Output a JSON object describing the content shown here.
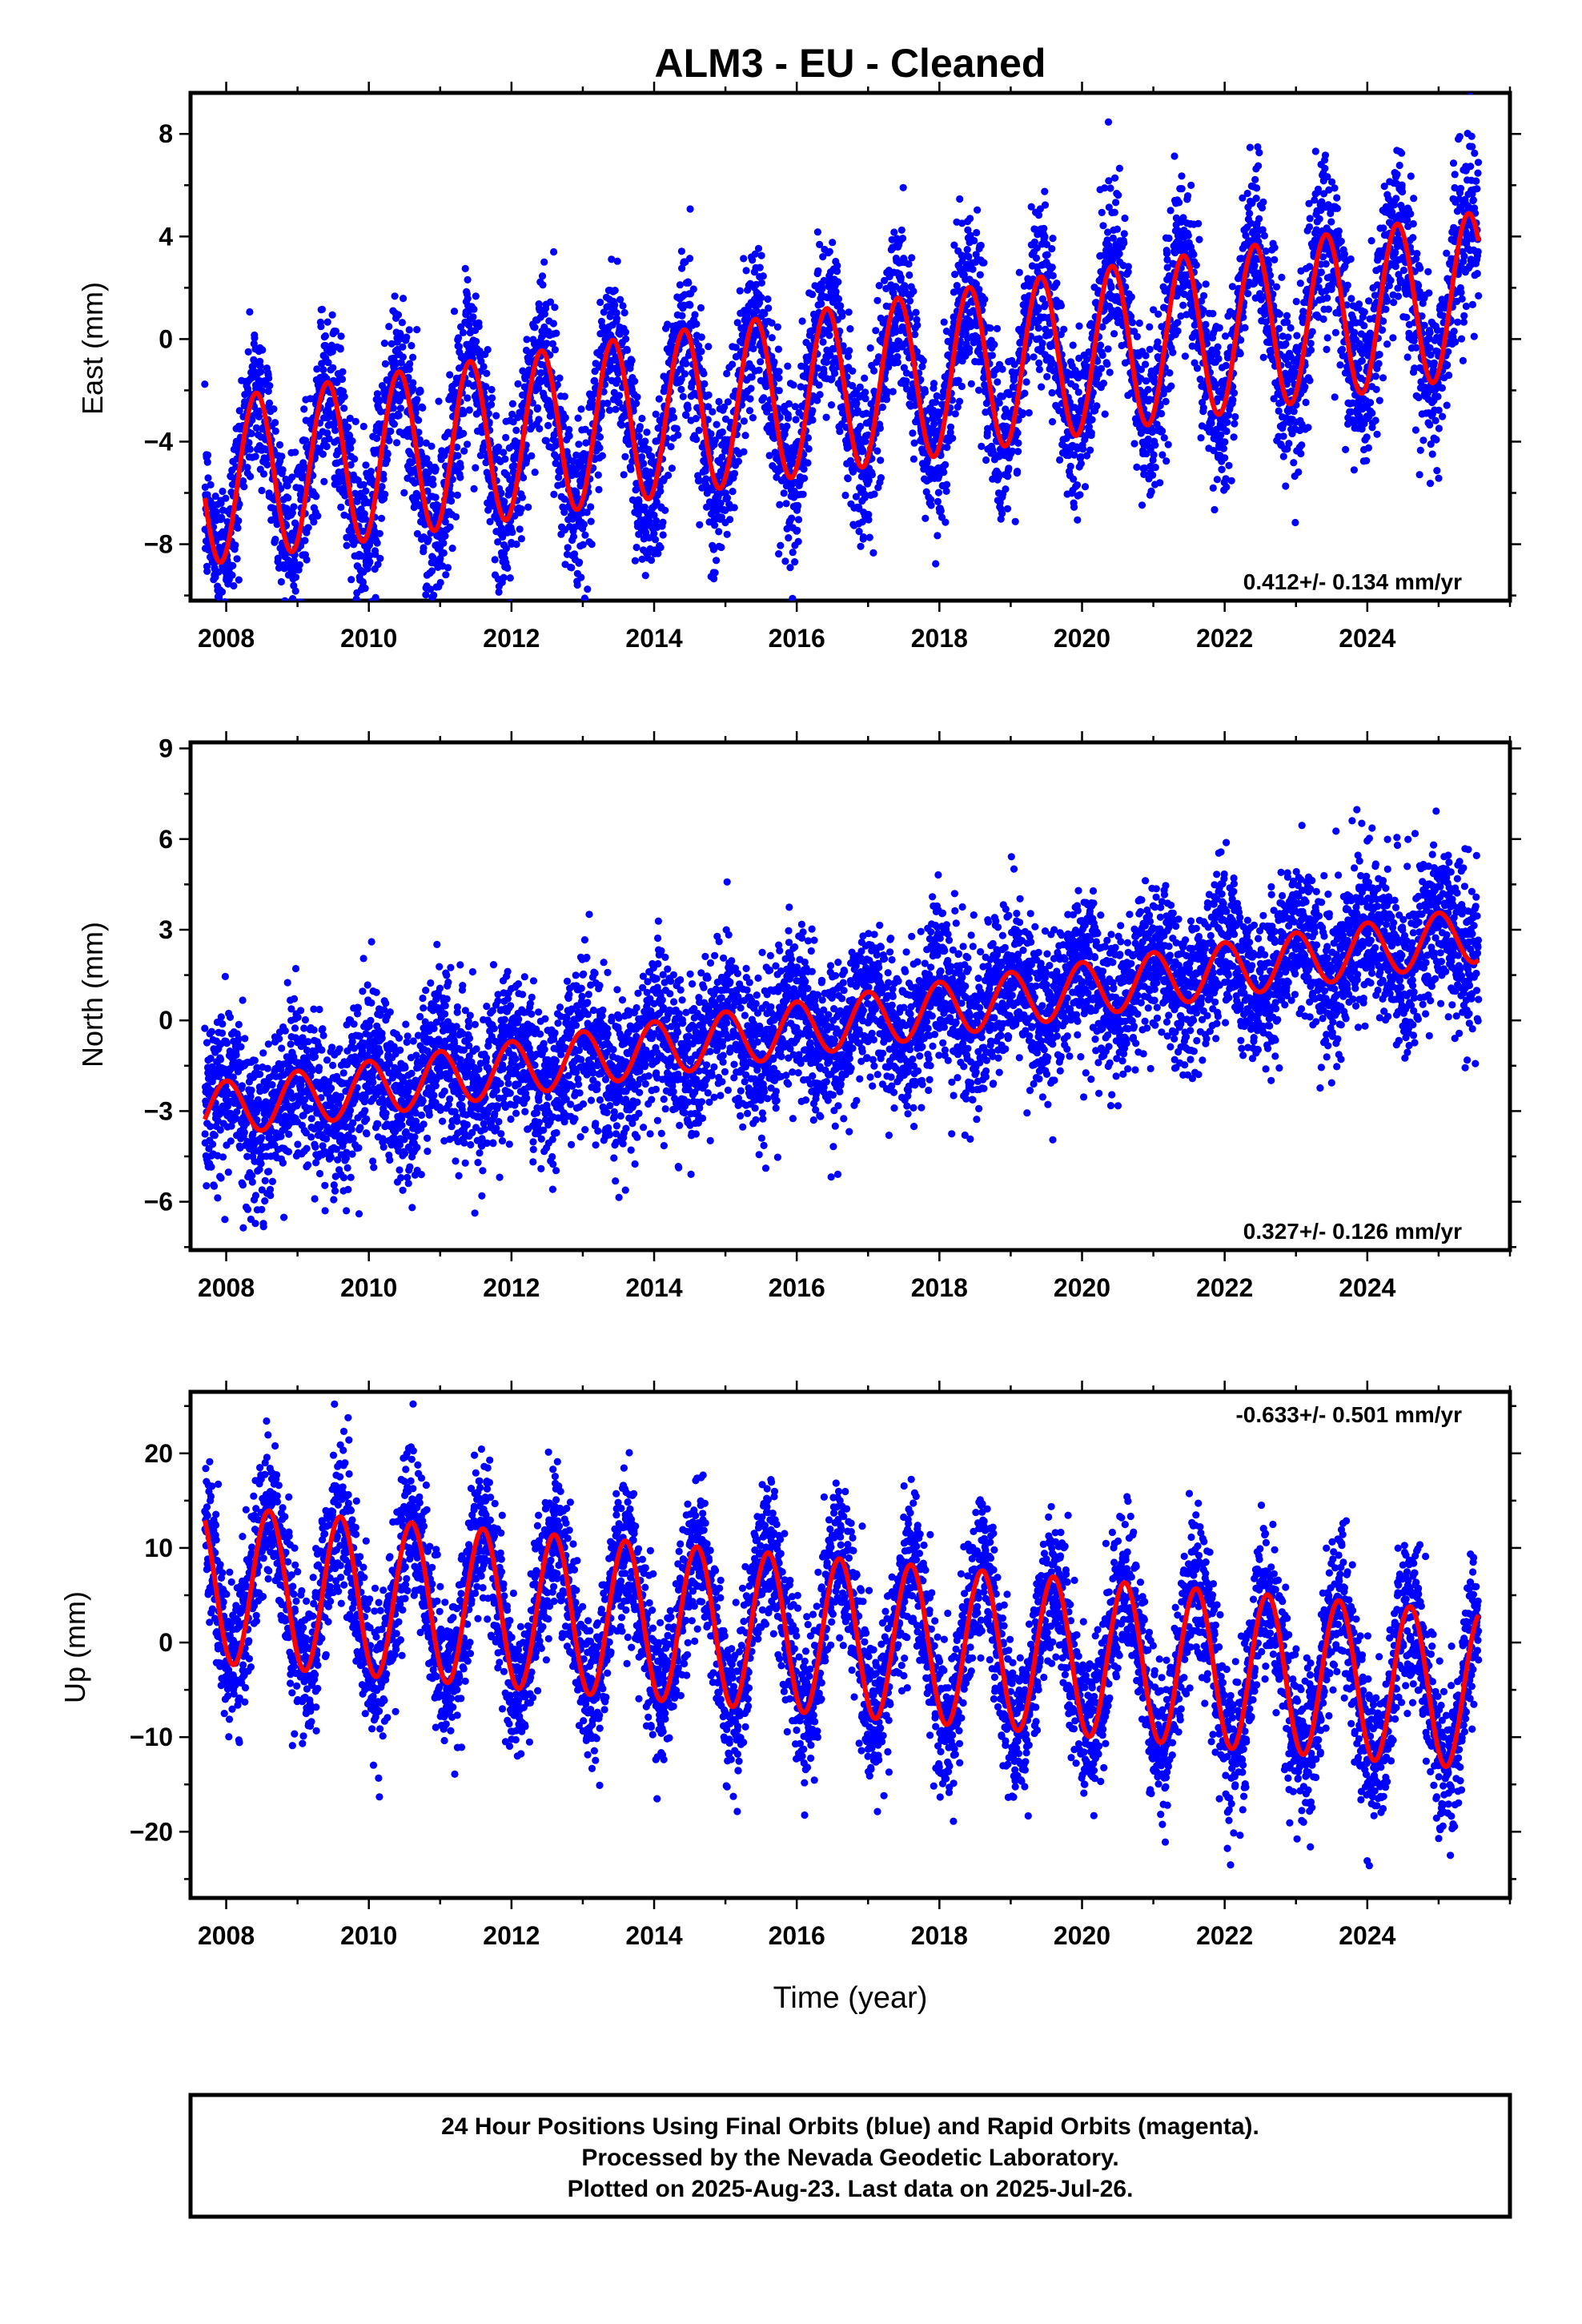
{
  "figure": {
    "title": "ALM3  - EU - Cleaned",
    "xlabel": "Time (year)",
    "footer": [
      "24 Hour Positions Using Final Orbits (blue) and Rapid Orbits (magenta).",
      "Processed by the Nevada Geodetic Laboratory.",
      "Plotted on 2025-Aug-23. Last data on 2025-Jul-26."
    ]
  },
  "chart_data": [
    {
      "type": "scatter",
      "ylabel": "East (mm)",
      "rate_label": "0.412+/- 0.134 mm/yr",
      "xlim": [
        2007.5,
        2026.0
      ],
      "ylim": [
        -10.2,
        9.6
      ],
      "x_ticks": [
        2008,
        2010,
        2012,
        2014,
        2016,
        2018,
        2020,
        2022,
        2024
      ],
      "y_ticks": [
        8,
        4,
        0,
        -4,
        -8
      ],
      "data_range": [
        2007.7,
        2025.56
      ],
      "series": [
        {
          "kind": "points",
          "color": "#0000ff",
          "model": {
            "start_value": -5.6,
            "rate": 0.412,
            "annual_amp": 3.2,
            "annual_peak": 0.42,
            "scatter_sd": 1.6
          }
        },
        {
          "kind": "line",
          "color": "#ff0000",
          "model": {
            "start_value": -5.6,
            "rate": 0.412,
            "annual_amp": 3.2,
            "annual_peak": 0.42
          }
        }
      ]
    },
    {
      "type": "scatter",
      "ylabel": "North (mm)",
      "rate_label": "0.327+/- 0.126 mm/yr",
      "xlim": [
        2007.5,
        2026.0
      ],
      "ylim": [
        -7.6,
        9.2
      ],
      "x_ticks": [
        2008,
        2010,
        2012,
        2014,
        2016,
        2018,
        2020,
        2022,
        2024
      ],
      "y_ticks": [
        9,
        6,
        3,
        0,
        -3,
        -6
      ],
      "data_range": [
        2007.7,
        2025.56
      ],
      "series": [
        {
          "kind": "points",
          "color": "#0000ff",
          "model": {
            "start_value": -3.0,
            "rate": 0.327,
            "annual_amp": 0.9,
            "annual_peak": 0.0,
            "scatter_sd": 1.3
          }
        },
        {
          "kind": "line",
          "color": "#ff0000",
          "model": {
            "start_value": -3.0,
            "rate": 0.327,
            "annual_amp": 0.9,
            "annual_peak": 0.0
          }
        }
      ]
    },
    {
      "type": "scatter",
      "ylabel": "Up (mm)",
      "rate_label": "-0.633+/- 0.501 mm/yr",
      "xlim": [
        2007.5,
        2026.0
      ],
      "ylim": [
        -27.0,
        26.5
      ],
      "x_ticks": [
        2008,
        2010,
        2012,
        2014,
        2016,
        2018,
        2020,
        2022,
        2024
      ],
      "y_ticks": [
        20,
        10,
        0,
        -10,
        -20
      ],
      "data_range": [
        2007.7,
        2025.56
      ],
      "series": [
        {
          "kind": "points",
          "color": "#0000ff",
          "model": {
            "start_value": 6.2,
            "rate": -0.633,
            "annual_amp": 8.3,
            "annual_peak": 0.6,
            "scatter_sd": 4.0
          }
        },
        {
          "kind": "line",
          "color": "#ff0000",
          "model": {
            "start_value": 6.2,
            "rate": -0.633,
            "annual_amp": 8.3,
            "annual_peak": 0.6
          }
        }
      ]
    }
  ]
}
